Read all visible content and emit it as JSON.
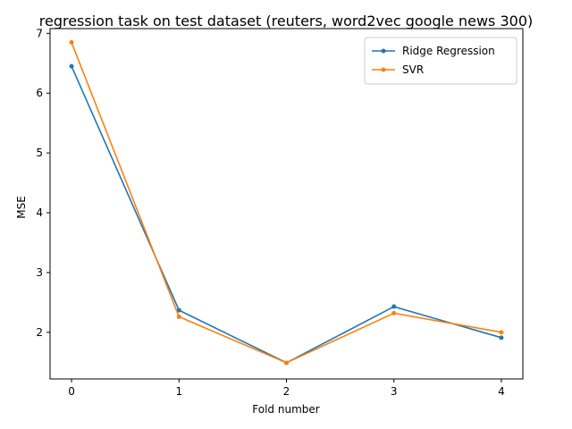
{
  "chart_data": {
    "type": "line",
    "title": "regression task on test dataset (reuters, word2vec google news 300)",
    "xlabel": "Fold number",
    "ylabel": "MSE",
    "x": [
      0,
      1,
      2,
      3,
      4
    ],
    "xticks": [
      "0",
      "1",
      "2",
      "3",
      "4"
    ],
    "yticks": [
      "2",
      "3",
      "4",
      "5",
      "6",
      "7"
    ],
    "xlim": [
      -0.2,
      4.2
    ],
    "ylim": [
      1.22,
      7.08
    ],
    "grid": false,
    "legend_position": "top-right",
    "series": [
      {
        "name": "Ridge Regression",
        "color": "#1f77b4",
        "values": [
          6.45,
          2.37,
          1.49,
          2.43,
          1.91
        ]
      },
      {
        "name": "SVR",
        "color": "#ff7f0e",
        "values": [
          6.85,
          2.26,
          1.49,
          2.32,
          2.0
        ]
      }
    ]
  }
}
